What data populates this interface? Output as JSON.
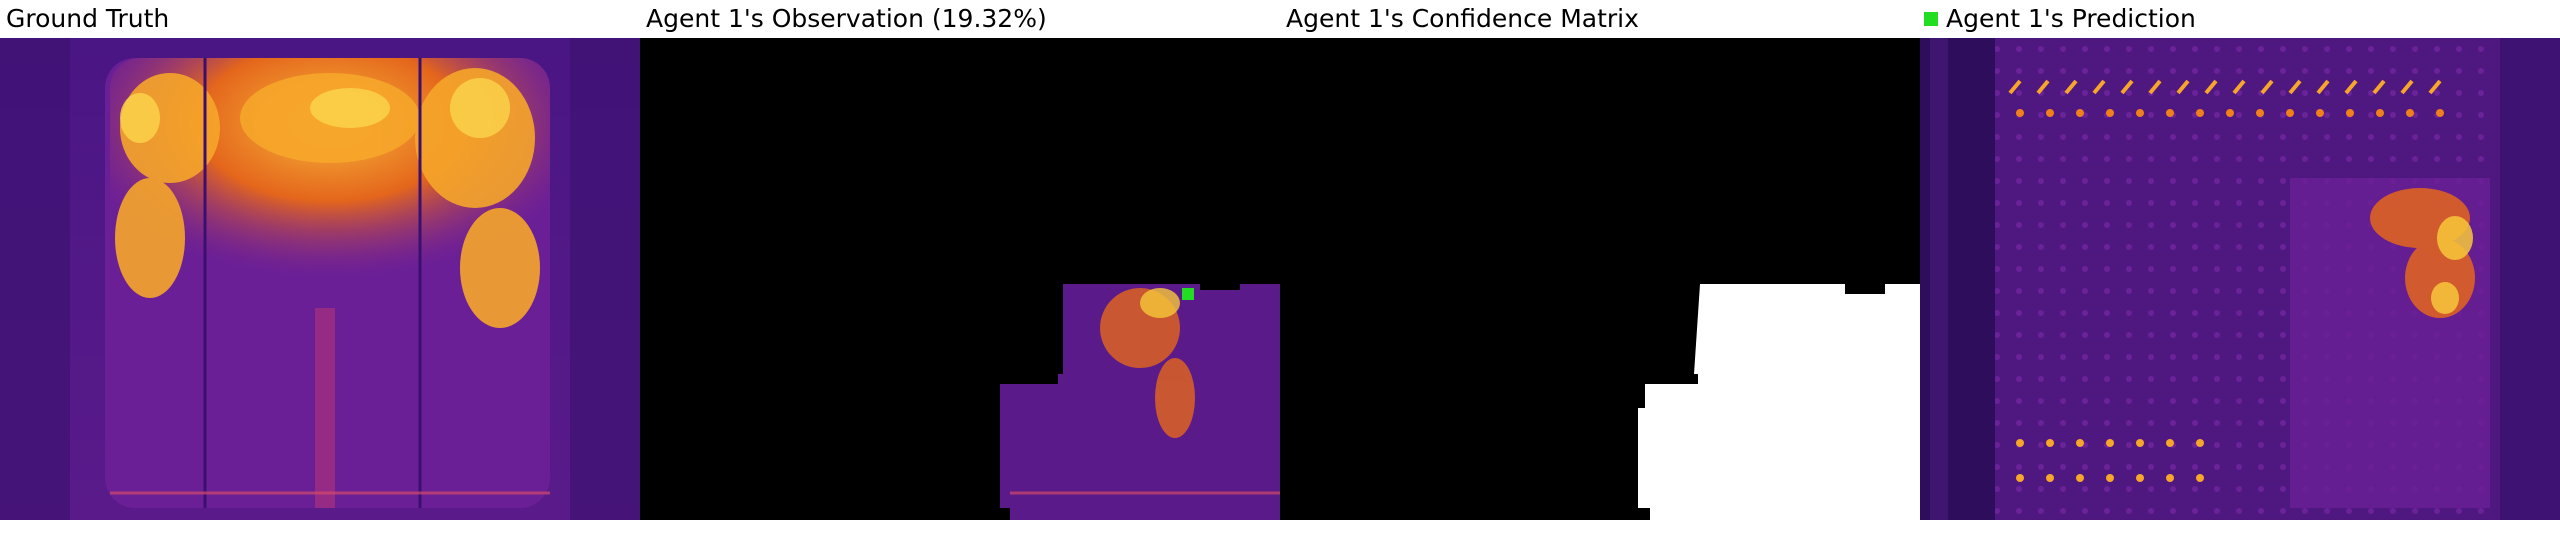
{
  "panels": [
    {
      "id": "ground-truth",
      "title": "Ground Truth"
    },
    {
      "id": "observation",
      "title": "Agent 1's Observation (19.32%)"
    },
    {
      "id": "confidence",
      "title": "Agent 1's Confidence Matrix"
    },
    {
      "id": "prediction",
      "title": "Agent 1's Prediction"
    }
  ],
  "legend": {
    "color": "#22dd22"
  },
  "colors": {
    "dark_purple": "#3a0f6e",
    "mid_purple": "#5a1a8a",
    "hot_orange": "#f08a1c",
    "hot_yellow": "#f8c83a",
    "green_marker": "#22dd22",
    "mask_white": "#ffffff",
    "mask_black": "#000000"
  }
}
